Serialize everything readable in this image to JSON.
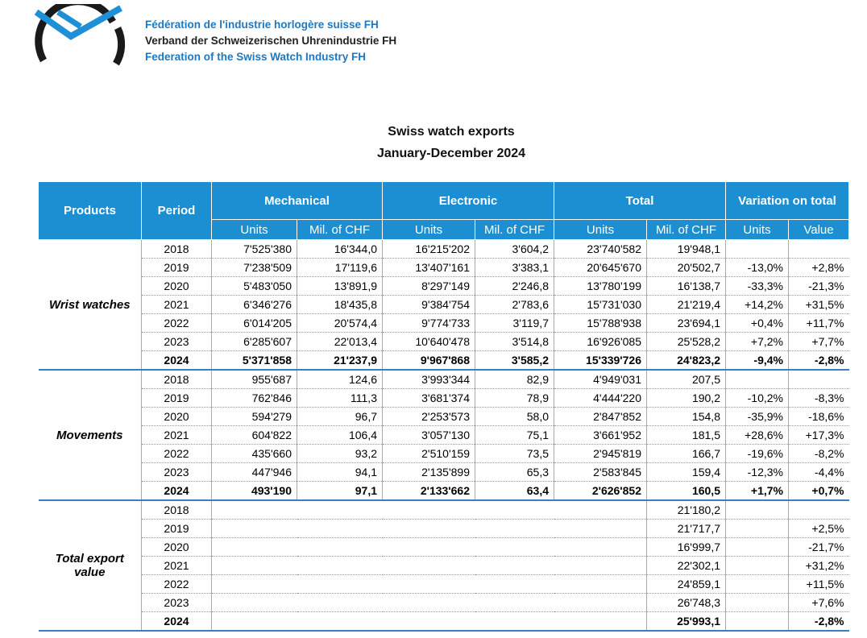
{
  "header": {
    "lines": [
      "Fédération de l'industrie horlogère suisse FH",
      "Verband der Schweizerischen Uhrenindustrie FH",
      "Federation of the Swiss Watch Industry FH"
    ]
  },
  "title": [
    "Swiss watch exports",
    "January-December 2024"
  ],
  "table": {
    "columns": [
      "Products",
      "Period",
      "Mechanical",
      "Electronic",
      "Total",
      "Variation on total"
    ],
    "subcolumns": [
      "Units",
      "Mil. of CHF",
      "Units",
      "Mil. of CHF",
      "Units",
      "Mil. of CHF",
      "Units",
      "Value"
    ],
    "groups": [
      {
        "label": "Wrist watches",
        "rows": [
          [
            "2018",
            "7'525'380",
            "16'344,0",
            "16'215'202",
            "3'604,2",
            "23'740'582",
            "19'948,1",
            null,
            null
          ],
          [
            "2019",
            "7'238'509",
            "17'119,6",
            "13'407'161",
            "3'383,1",
            "20'645'670",
            "20'502,7",
            "-13,0%",
            "+2,8%"
          ],
          [
            "2020",
            "5'483'050",
            "13'891,9",
            "8'297'149",
            "2'246,8",
            "13'780'199",
            "16'138,7",
            "-33,3%",
            "-21,3%"
          ],
          [
            "2021",
            "6'346'276",
            "18'435,8",
            "9'384'754",
            "2'783,6",
            "15'731'030",
            "21'219,4",
            "+14,2%",
            "+31,5%"
          ],
          [
            "2022",
            "6'014'205",
            "20'574,4",
            "9'774'733",
            "3'119,7",
            "15'788'938",
            "23'694,1",
            "+0,4%",
            "+11,7%"
          ],
          [
            "2023",
            "6'285'607",
            "22'013,4",
            "10'640'478",
            "3'514,8",
            "16'926'085",
            "25'528,2",
            "+7,2%",
            "+7,7%"
          ],
          [
            "2024",
            "5'371'858",
            "21'237,9",
            "9'967'868",
            "3'585,2",
            "15'339'726",
            "24'823,2",
            "-9,4%",
            "-2,8%"
          ]
        ]
      },
      {
        "label": "Movements",
        "rows": [
          [
            "2018",
            "955'687",
            "124,6",
            "3'993'344",
            "82,9",
            "4'949'031",
            "207,5",
            null,
            null
          ],
          [
            "2019",
            "762'846",
            "111,3",
            "3'681'374",
            "78,9",
            "4'444'220",
            "190,2",
            "-10,2%",
            "-8,3%"
          ],
          [
            "2020",
            "594'279",
            "96,7",
            "2'253'573",
            "58,0",
            "2'847'852",
            "154,8",
            "-35,9%",
            "-18,6%"
          ],
          [
            "2021",
            "604'822",
            "106,4",
            "3'057'130",
            "75,1",
            "3'661'952",
            "181,5",
            "+28,6%",
            "+17,3%"
          ],
          [
            "2022",
            "435'660",
            "93,2",
            "2'510'159",
            "73,5",
            "2'945'819",
            "166,7",
            "-19,6%",
            "-8,2%"
          ],
          [
            "2023",
            "447'946",
            "94,1",
            "2'135'899",
            "65,3",
            "2'583'845",
            "159,4",
            "-12,3%",
            "-4,4%"
          ],
          [
            "2024",
            "493'190",
            "97,1",
            "2'133'662",
            "63,4",
            "2'626'852",
            "160,5",
            "+1,7%",
            "+0,7%"
          ]
        ]
      },
      {
        "label": "Total export value",
        "rows": [
          [
            "2018",
            null,
            null,
            null,
            null,
            null,
            "21'180,2",
            null,
            null
          ],
          [
            "2019",
            null,
            null,
            null,
            null,
            null,
            "21'717,7",
            null,
            "+2,5%"
          ],
          [
            "2020",
            null,
            null,
            null,
            null,
            null,
            "16'999,7",
            null,
            "-21,7%"
          ],
          [
            "2021",
            null,
            null,
            null,
            null,
            null,
            "22'302,1",
            null,
            "+31,2%"
          ],
          [
            "2022",
            null,
            null,
            null,
            null,
            null,
            "24'859,1",
            null,
            "+11,5%"
          ],
          [
            "2023",
            null,
            null,
            null,
            null,
            null,
            "26'748,3",
            null,
            "+7,6%"
          ],
          [
            "2024",
            null,
            null,
            null,
            null,
            null,
            "25'993,1",
            null,
            "-2,8%"
          ]
        ]
      }
    ]
  }
}
